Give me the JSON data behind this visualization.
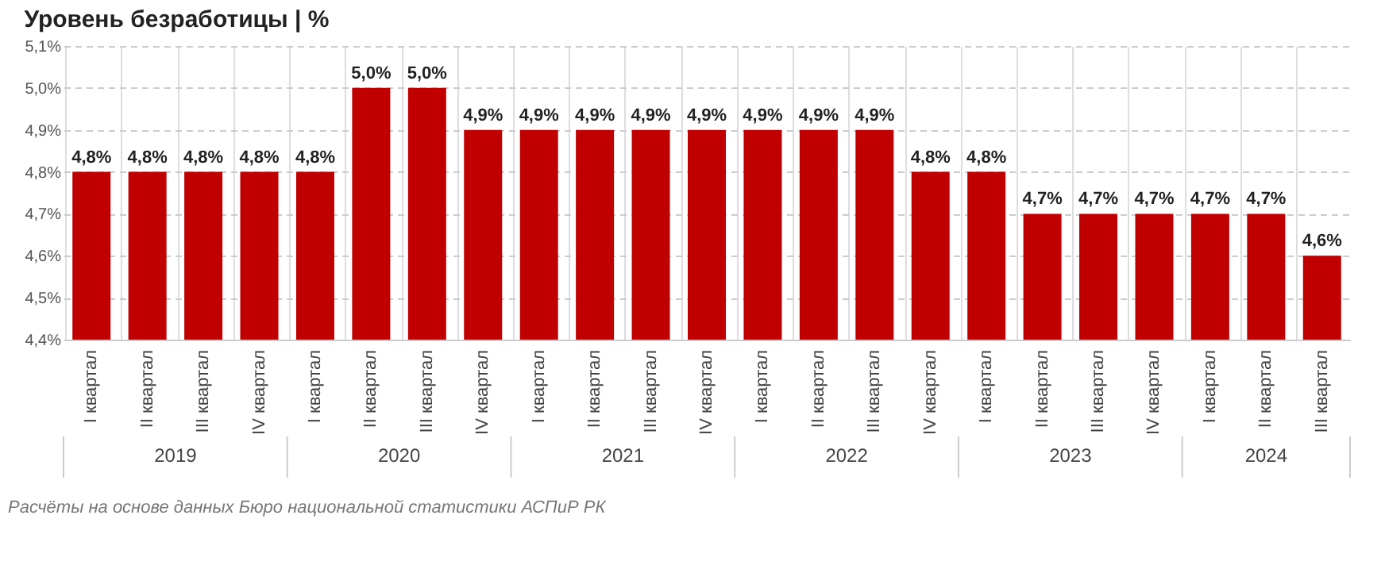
{
  "chart_data": {
    "type": "bar",
    "title": "Уровень безработицы | %",
    "categories": [
      "I квартал",
      "II квартал",
      "III квартал",
      "IV квартал",
      "I квартал",
      "II квартал",
      "III квартал",
      "IV квартал",
      "I квартал",
      "II квартал",
      "III квартал",
      "IV квартал",
      "I квартал",
      "II квартал",
      "III квартал",
      "IV квартал",
      "I квартал",
      "II квартал",
      "III квартал",
      "IV квартал",
      "I квартал",
      "II квартал",
      "III квартал"
    ],
    "values": [
      4.8,
      4.8,
      4.8,
      4.8,
      4.8,
      5.0,
      5.0,
      4.9,
      4.9,
      4.9,
      4.9,
      4.9,
      4.9,
      4.9,
      4.9,
      4.8,
      4.8,
      4.7,
      4.7,
      4.7,
      4.7,
      4.7,
      4.6
    ],
    "value_labels": [
      "4,8%",
      "4,8%",
      "4,8%",
      "4,8%",
      "4,8%",
      "5,0%",
      "5,0%",
      "4,9%",
      "4,9%",
      "4,9%",
      "4,9%",
      "4,9%",
      "4,9%",
      "4,9%",
      "4,9%",
      "4,8%",
      "4,8%",
      "4,7%",
      "4,7%",
      "4,7%",
      "4,7%",
      "4,7%",
      "4,6%"
    ],
    "color": "#c00000",
    "ylim": [
      4.4,
      5.1
    ],
    "yticks": [
      {
        "value": 4.4,
        "label": "4,4%"
      },
      {
        "value": 4.5,
        "label": "4,5%"
      },
      {
        "value": 4.6,
        "label": "4,6%"
      },
      {
        "value": 4.7,
        "label": "4,7%"
      },
      {
        "value": 4.8,
        "label": "4,8%"
      },
      {
        "value": 4.9,
        "label": "4,9%"
      },
      {
        "value": 5.0,
        "label": "5,0%"
      },
      {
        "value": 5.1,
        "label": "5,1%"
      }
    ],
    "grid": true,
    "annotations": [
      "2019",
      "2020",
      "2021",
      "2022",
      "2023",
      "2024",
      "Расчёты на основе данных Бюро национальной статистики АСПиР РК"
    ]
  }
}
